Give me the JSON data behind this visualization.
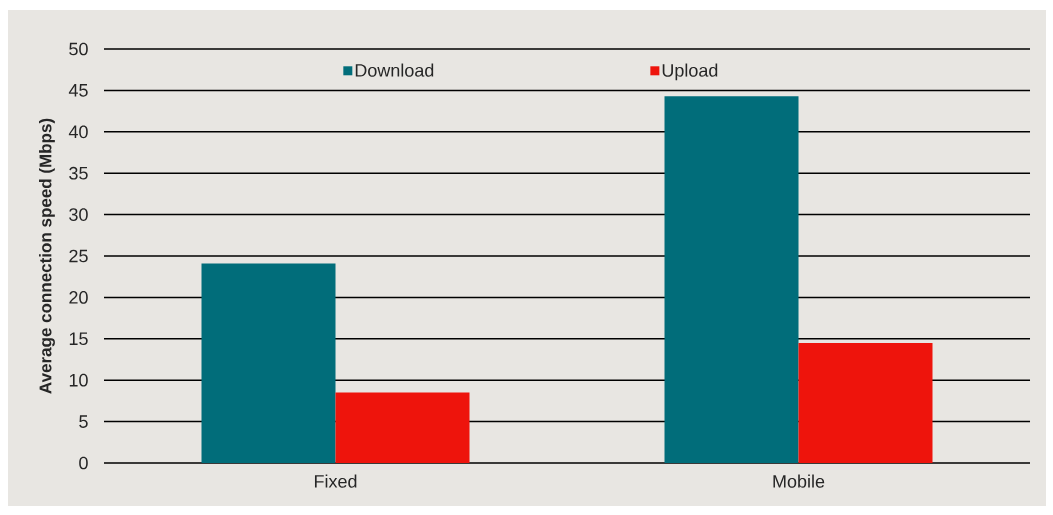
{
  "chart_data": {
    "type": "bar",
    "categories": [
      "Fixed",
      "Mobile"
    ],
    "series": [
      {
        "name": "Download",
        "color": "#016d7a",
        "values": [
          24.1,
          44.3
        ]
      },
      {
        "name": "Upload",
        "color": "#ee140c",
        "values": [
          8.5,
          14.5
        ]
      }
    ],
    "ylabel": "Average connection speed (Mbps)",
    "ylim": [
      0,
      50
    ],
    "yticks": [
      0,
      5,
      10,
      15,
      20,
      25,
      30,
      35,
      40,
      45,
      50
    ],
    "grid": "y",
    "legend": "top"
  }
}
